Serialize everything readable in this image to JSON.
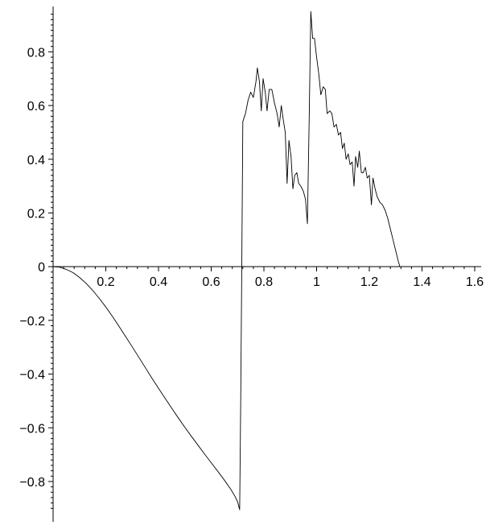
{
  "chart_data": {
    "type": "line",
    "title": "",
    "xlabel": "",
    "ylabel": "",
    "xlim": [
      0,
      1.6
    ],
    "ylim": [
      -0.92,
      0.96
    ],
    "grid": false,
    "legend": "none",
    "axes_cross_at_origin": true,
    "x_ticks": [
      {
        "value": 0.2,
        "label": "0.2"
      },
      {
        "value": 0.4,
        "label": "0.4"
      },
      {
        "value": 0.6,
        "label": "0.6"
      },
      {
        "value": 0.8,
        "label": "0.8"
      },
      {
        "value": 1.0,
        "label": "1"
      },
      {
        "value": 1.2,
        "label": "1.2"
      },
      {
        "value": 1.4,
        "label": "1.4"
      },
      {
        "value": 1.6,
        "label": "1.6"
      }
    ],
    "y_ticks": [
      {
        "value": 0.8,
        "label": "0.8"
      },
      {
        "value": 0.6,
        "label": "0.6"
      },
      {
        "value": 0.4,
        "label": "0.4"
      },
      {
        "value": 0.2,
        "label": "0.2"
      },
      {
        "value": 0,
        "label": "0"
      },
      {
        "value": -0.2,
        "label": "−0.2"
      },
      {
        "value": -0.4,
        "label": "−0.4"
      },
      {
        "value": -0.6,
        "label": "−0.6"
      },
      {
        "value": -0.8,
        "label": "−0.8"
      }
    ],
    "series": [
      {
        "color": "#000000",
        "points": [
          [
            0.0,
            0.0
          ],
          [
            0.025,
            -0.002
          ],
          [
            0.05,
            -0.01
          ],
          [
            0.075,
            -0.022
          ],
          [
            0.1,
            -0.04
          ],
          [
            0.125,
            -0.062
          ],
          [
            0.15,
            -0.088
          ],
          [
            0.175,
            -0.118
          ],
          [
            0.2,
            -0.15
          ],
          [
            0.225,
            -0.185
          ],
          [
            0.25,
            -0.222
          ],
          [
            0.275,
            -0.26
          ],
          [
            0.3,
            -0.298
          ],
          [
            0.325,
            -0.337
          ],
          [
            0.35,
            -0.376
          ],
          [
            0.375,
            -0.415
          ],
          [
            0.4,
            -0.453
          ],
          [
            0.425,
            -0.49
          ],
          [
            0.45,
            -0.527
          ],
          [
            0.475,
            -0.563
          ],
          [
            0.5,
            -0.598
          ],
          [
            0.525,
            -0.632
          ],
          [
            0.55,
            -0.665
          ],
          [
            0.575,
            -0.698
          ],
          [
            0.6,
            -0.73
          ],
          [
            0.625,
            -0.762
          ],
          [
            0.65,
            -0.795
          ],
          [
            0.675,
            -0.83
          ],
          [
            0.69,
            -0.855
          ],
          [
            0.7,
            -0.875
          ],
          [
            0.708,
            -0.905
          ],
          [
            0.712,
            -0.5
          ],
          [
            0.716,
            0.0
          ],
          [
            0.72,
            0.54
          ],
          [
            0.73,
            0.57
          ],
          [
            0.74,
            0.62
          ],
          [
            0.75,
            0.65
          ],
          [
            0.76,
            0.63
          ],
          [
            0.77,
            0.69
          ],
          [
            0.775,
            0.74
          ],
          [
            0.783,
            0.69
          ],
          [
            0.79,
            0.58
          ],
          [
            0.797,
            0.7
          ],
          [
            0.805,
            0.65
          ],
          [
            0.812,
            0.58
          ],
          [
            0.82,
            0.66
          ],
          [
            0.83,
            0.66
          ],
          [
            0.84,
            0.61
          ],
          [
            0.85,
            0.57
          ],
          [
            0.858,
            0.52
          ],
          [
            0.866,
            0.6
          ],
          [
            0.873,
            0.55
          ],
          [
            0.881,
            0.5
          ],
          [
            0.888,
            0.31
          ],
          [
            0.895,
            0.47
          ],
          [
            0.903,
            0.41
          ],
          [
            0.91,
            0.29
          ],
          [
            0.917,
            0.34
          ],
          [
            0.925,
            0.35
          ],
          [
            0.932,
            0.31
          ],
          [
            0.94,
            0.3
          ],
          [
            0.95,
            0.28
          ],
          [
            0.958,
            0.25
          ],
          [
            0.965,
            0.16
          ],
          [
            0.972,
            0.56
          ],
          [
            0.978,
            0.95
          ],
          [
            0.985,
            0.85
          ],
          [
            0.992,
            0.85
          ],
          [
            1.0,
            0.78
          ],
          [
            1.008,
            0.72
          ],
          [
            1.016,
            0.64
          ],
          [
            1.025,
            0.67
          ],
          [
            1.033,
            0.66
          ],
          [
            1.04,
            0.57
          ],
          [
            1.05,
            0.58
          ],
          [
            1.058,
            0.57
          ],
          [
            1.066,
            0.52
          ],
          [
            1.075,
            0.53
          ],
          [
            1.083,
            0.49
          ],
          [
            1.091,
            0.5
          ],
          [
            1.098,
            0.44
          ],
          [
            1.105,
            0.46
          ],
          [
            1.112,
            0.4
          ],
          [
            1.12,
            0.42
          ],
          [
            1.127,
            0.38
          ],
          [
            1.135,
            0.39
          ],
          [
            1.142,
            0.3
          ],
          [
            1.148,
            0.41
          ],
          [
            1.156,
            0.37
          ],
          [
            1.162,
            0.43
          ],
          [
            1.17,
            0.35
          ],
          [
            1.177,
            0.35
          ],
          [
            1.185,
            0.37
          ],
          [
            1.192,
            0.33
          ],
          [
            1.2,
            0.34
          ],
          [
            1.208,
            0.23
          ],
          [
            1.214,
            0.33
          ],
          [
            1.222,
            0.29
          ],
          [
            1.23,
            0.26
          ],
          [
            1.24,
            0.24
          ],
          [
            1.25,
            0.23
          ],
          [
            1.26,
            0.21
          ],
          [
            1.27,
            0.18
          ],
          [
            1.28,
            0.14
          ],
          [
            1.29,
            0.1
          ],
          [
            1.3,
            0.06
          ],
          [
            1.31,
            0.02
          ],
          [
            1.316,
            0.0
          ]
        ]
      }
    ]
  }
}
